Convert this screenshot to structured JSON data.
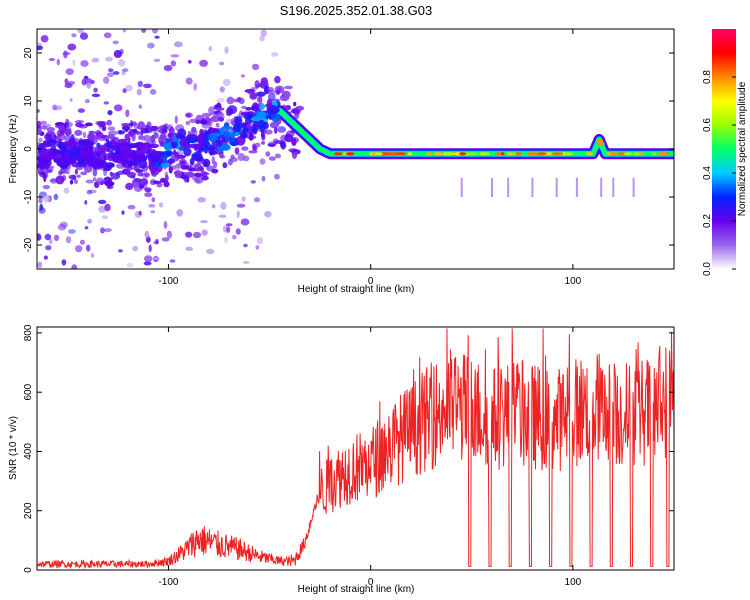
{
  "title": "S196.2025.352.01.38.G03",
  "colors": {
    "snr_line": "#ee2222",
    "frame": "#000000"
  },
  "chart_data": [
    {
      "type": "heatmap",
      "name": "spectrogram",
      "xlabel": "Height of straight line (km)",
      "ylabel": "Frequency (Hz)",
      "xlim": [
        -165,
        150
      ],
      "ylim": [
        -25,
        25
      ],
      "xticks": [
        -100,
        0,
        100
      ],
      "yticks": [
        -20,
        -10,
        0,
        10,
        20
      ],
      "colorbar": {
        "label": "Normalized spectral amplitude",
        "range": [
          0,
          1
        ],
        "ticks": [
          0.0,
          0.2,
          0.4,
          0.6,
          0.8
        ],
        "colormap": [
          "#ffffff",
          "#9966ee",
          "#6600ee",
          "#0022ff",
          "#00ccff",
          "#00ff66",
          "#99ff00",
          "#ffff00",
          "#ff8800",
          "#ff0000",
          "#ff0066"
        ]
      },
      "ridge": {
        "x": [
          -165,
          -140,
          -120,
          -105,
          -95,
          -85,
          -75,
          -65,
          -55,
          -45,
          -40,
          -35,
          -30,
          -25,
          -20,
          -10,
          0,
          10,
          20,
          40,
          60,
          80,
          100,
          110,
          113,
          116,
          120,
          130,
          140,
          150
        ],
        "freq": [
          -1,
          -1,
          -1,
          -2,
          1,
          0,
          2,
          4,
          7,
          8,
          6,
          4,
          2,
          0,
          -1,
          -1,
          -1,
          -1,
          -1,
          -1,
          -1,
          -1,
          -1,
          -1,
          2,
          -1,
          -1,
          -1,
          -1,
          -1
        ]
      }
    },
    {
      "type": "line",
      "name": "snr",
      "xlabel": "Height of straight line (km)",
      "ylabel": "SNR (10 * v/v)",
      "xlim": [
        -165,
        150
      ],
      "ylim": [
        0,
        820
      ],
      "xticks": [
        -100,
        0,
        100
      ],
      "yticks": [
        0,
        200,
        400,
        600,
        800
      ],
      "envelope": {
        "x": [
          -165,
          -110,
          -100,
          -92,
          -85,
          -75,
          -65,
          -55,
          -45,
          -38,
          -33,
          -28,
          -25,
          -20,
          -15,
          -10,
          -5,
          0,
          5,
          10,
          20,
          30,
          40,
          50,
          60,
          70,
          80,
          90,
          100,
          110,
          120,
          130,
          140,
          150
        ],
        "snr": [
          20,
          20,
          30,
          65,
          105,
          85,
          70,
          45,
          30,
          30,
          85,
          200,
          260,
          290,
          320,
          340,
          350,
          360,
          390,
          420,
          470,
          520,
          560,
          540,
          510,
          530,
          520,
          500,
          530,
          560,
          520,
          530,
          540,
          600
        ]
      },
      "dropouts_x": [
        49,
        59,
        69,
        79,
        89,
        99,
        109,
        119,
        129,
        139,
        147
      ]
    }
  ]
}
